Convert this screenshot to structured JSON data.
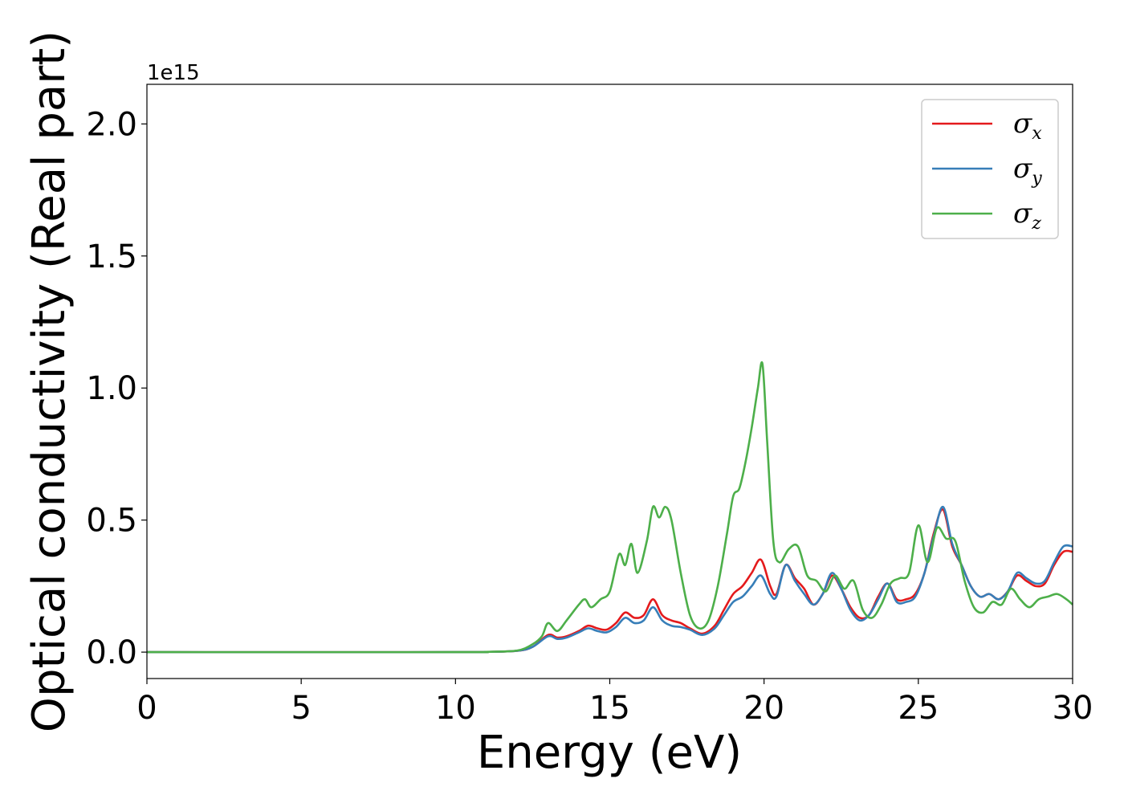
{
  "chart_data": {
    "type": "line",
    "title": "",
    "xlabel": "Energy (eV)",
    "ylabel": "Optical conductivity (Real part)",
    "y_offset_label": "1e15",
    "xlim": [
      0,
      30
    ],
    "ylim": [
      -0.1,
      2.15
    ],
    "xticks": [
      0,
      5,
      10,
      15,
      20,
      25,
      30
    ],
    "xtick_labels": [
      "0",
      "5",
      "10",
      "15",
      "20",
      "25",
      "30"
    ],
    "yticks": [
      0.0,
      0.5,
      1.0,
      1.5,
      2.0
    ],
    "ytick_labels": [
      "0.0",
      "0.5",
      "1.0",
      "1.5",
      "2.0"
    ],
    "grid": false,
    "legend_position": "top-right",
    "series": [
      {
        "name": "σx",
        "symbol": "σ",
        "subscript": "x",
        "color": "#e41a1c",
        "x": [
          0,
          10,
          11,
          12,
          12.5,
          13,
          13.3,
          13.6,
          14,
          14.3,
          14.6,
          14.9,
          15.2,
          15.5,
          15.8,
          16.1,
          16.4,
          16.7,
          17,
          17.3,
          17.6,
          18,
          18.4,
          18.7,
          19,
          19.3,
          19.6,
          19.9,
          20.2,
          20.4,
          20.7,
          21,
          21.3,
          21.6,
          21.9,
          22.2,
          22.5,
          22.8,
          23.1,
          23.4,
          23.7,
          24,
          24.3,
          24.6,
          24.9,
          25.2,
          25.5,
          25.8,
          26.1,
          26.4,
          26.7,
          27,
          27.3,
          27.6,
          27.9,
          28.2,
          28.5,
          28.8,
          29.1,
          29.4,
          29.7,
          30
        ],
        "values": [
          0.0,
          0.0,
          0.001,
          0.005,
          0.02,
          0.065,
          0.055,
          0.06,
          0.08,
          0.1,
          0.09,
          0.085,
          0.11,
          0.15,
          0.13,
          0.14,
          0.2,
          0.14,
          0.12,
          0.11,
          0.09,
          0.07,
          0.1,
          0.16,
          0.22,
          0.25,
          0.3,
          0.35,
          0.25,
          0.22,
          0.33,
          0.28,
          0.24,
          0.18,
          0.22,
          0.29,
          0.24,
          0.17,
          0.13,
          0.14,
          0.21,
          0.26,
          0.2,
          0.2,
          0.22,
          0.3,
          0.45,
          0.54,
          0.4,
          0.33,
          0.25,
          0.21,
          0.22,
          0.2,
          0.23,
          0.29,
          0.27,
          0.25,
          0.26,
          0.33,
          0.38,
          0.38
        ]
      },
      {
        "name": "σy",
        "symbol": "σ",
        "subscript": "y",
        "color": "#377eb8",
        "x": [
          0,
          10,
          11,
          12,
          12.5,
          13,
          13.3,
          13.6,
          14,
          14.3,
          14.6,
          14.9,
          15.2,
          15.5,
          15.8,
          16.1,
          16.4,
          16.7,
          17,
          17.3,
          17.6,
          18,
          18.4,
          18.7,
          19,
          19.3,
          19.6,
          19.9,
          20.2,
          20.4,
          20.7,
          21,
          21.3,
          21.6,
          21.9,
          22.2,
          22.5,
          22.8,
          23.1,
          23.4,
          23.7,
          24,
          24.3,
          24.6,
          24.9,
          25.2,
          25.5,
          25.8,
          26.1,
          26.4,
          26.7,
          27,
          27.3,
          27.6,
          27.9,
          28.2,
          28.5,
          28.8,
          29.1,
          29.4,
          29.7,
          30
        ],
        "values": [
          0.0,
          0.0,
          0.001,
          0.005,
          0.02,
          0.06,
          0.05,
          0.055,
          0.075,
          0.09,
          0.08,
          0.075,
          0.095,
          0.13,
          0.11,
          0.12,
          0.17,
          0.12,
          0.1,
          0.095,
          0.085,
          0.065,
          0.09,
          0.14,
          0.19,
          0.21,
          0.25,
          0.29,
          0.22,
          0.21,
          0.33,
          0.27,
          0.22,
          0.18,
          0.22,
          0.3,
          0.24,
          0.16,
          0.12,
          0.14,
          0.2,
          0.26,
          0.19,
          0.19,
          0.21,
          0.3,
          0.44,
          0.55,
          0.41,
          0.33,
          0.25,
          0.21,
          0.22,
          0.2,
          0.23,
          0.3,
          0.28,
          0.26,
          0.27,
          0.34,
          0.4,
          0.4
        ]
      },
      {
        "name": "σz",
        "symbol": "σ",
        "subscript": "z",
        "color": "#4daf4a",
        "x": [
          0,
          10,
          11,
          12,
          12.5,
          12.8,
          13,
          13.3,
          13.6,
          14,
          14.2,
          14.4,
          14.7,
          15,
          15.3,
          15.5,
          15.7,
          15.9,
          16.2,
          16.4,
          16.6,
          16.8,
          17,
          17.3,
          17.6,
          17.9,
          18.2,
          18.5,
          18.8,
          19,
          19.2,
          19.4,
          19.6,
          19.8,
          19.95,
          20.1,
          20.3,
          20.5,
          20.8,
          21.1,
          21.4,
          21.7,
          22,
          22.3,
          22.6,
          22.9,
          23.2,
          23.5,
          23.8,
          24.1,
          24.4,
          24.7,
          25,
          25.3,
          25.6,
          25.9,
          26.2,
          26.5,
          26.8,
          27.1,
          27.4,
          27.7,
          28,
          28.3,
          28.6,
          28.9,
          29.2,
          29.5,
          29.8,
          30
        ],
        "values": [
          0.0,
          0.0,
          0.001,
          0.006,
          0.03,
          0.06,
          0.11,
          0.08,
          0.12,
          0.18,
          0.2,
          0.17,
          0.2,
          0.23,
          0.37,
          0.33,
          0.41,
          0.3,
          0.42,
          0.55,
          0.51,
          0.55,
          0.5,
          0.3,
          0.14,
          0.09,
          0.12,
          0.25,
          0.45,
          0.59,
          0.62,
          0.72,
          0.85,
          1.0,
          1.09,
          0.8,
          0.42,
          0.34,
          0.39,
          0.4,
          0.29,
          0.27,
          0.23,
          0.29,
          0.24,
          0.27,
          0.16,
          0.13,
          0.18,
          0.26,
          0.28,
          0.3,
          0.48,
          0.34,
          0.47,
          0.43,
          0.42,
          0.27,
          0.17,
          0.15,
          0.19,
          0.18,
          0.24,
          0.2,
          0.17,
          0.2,
          0.21,
          0.22,
          0.2,
          0.18
        ]
      }
    ]
  }
}
